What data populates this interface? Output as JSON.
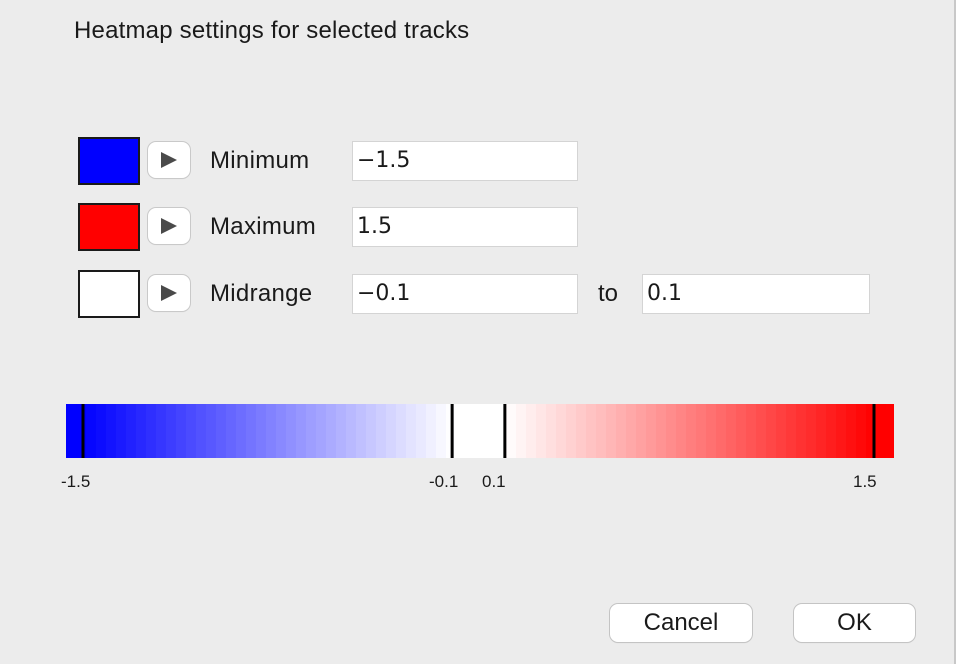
{
  "dialog": {
    "title": "Heatmap settings for selected tracks"
  },
  "rows": {
    "minimum": {
      "label": "Minimum",
      "value": "−1.5",
      "color": "#0000ff",
      "swatch_icon": "color-swatch-icon"
    },
    "maximum": {
      "label": "Maximum",
      "value": "1.5",
      "color": "#ff0000",
      "swatch_icon": "color-swatch-icon"
    },
    "midrange": {
      "label": "Midrange",
      "value_from": "−0.1",
      "to_label": "to",
      "value_to": "0.1",
      "color": "#ffffff",
      "swatch_icon": "color-swatch-icon"
    }
  },
  "colorbar": {
    "min": -1.5,
    "max": 1.5,
    "mid_low": -0.1,
    "mid_high": 0.1,
    "min_color": "#0000ff",
    "max_color": "#ff0000",
    "mid_color": "#ffffff",
    "tick_labels": {
      "min": "-1.5",
      "mid_low": "-0.1",
      "mid_high": "0.1",
      "max": "1.5"
    }
  },
  "buttons": {
    "cancel": "Cancel",
    "ok": "OK"
  }
}
